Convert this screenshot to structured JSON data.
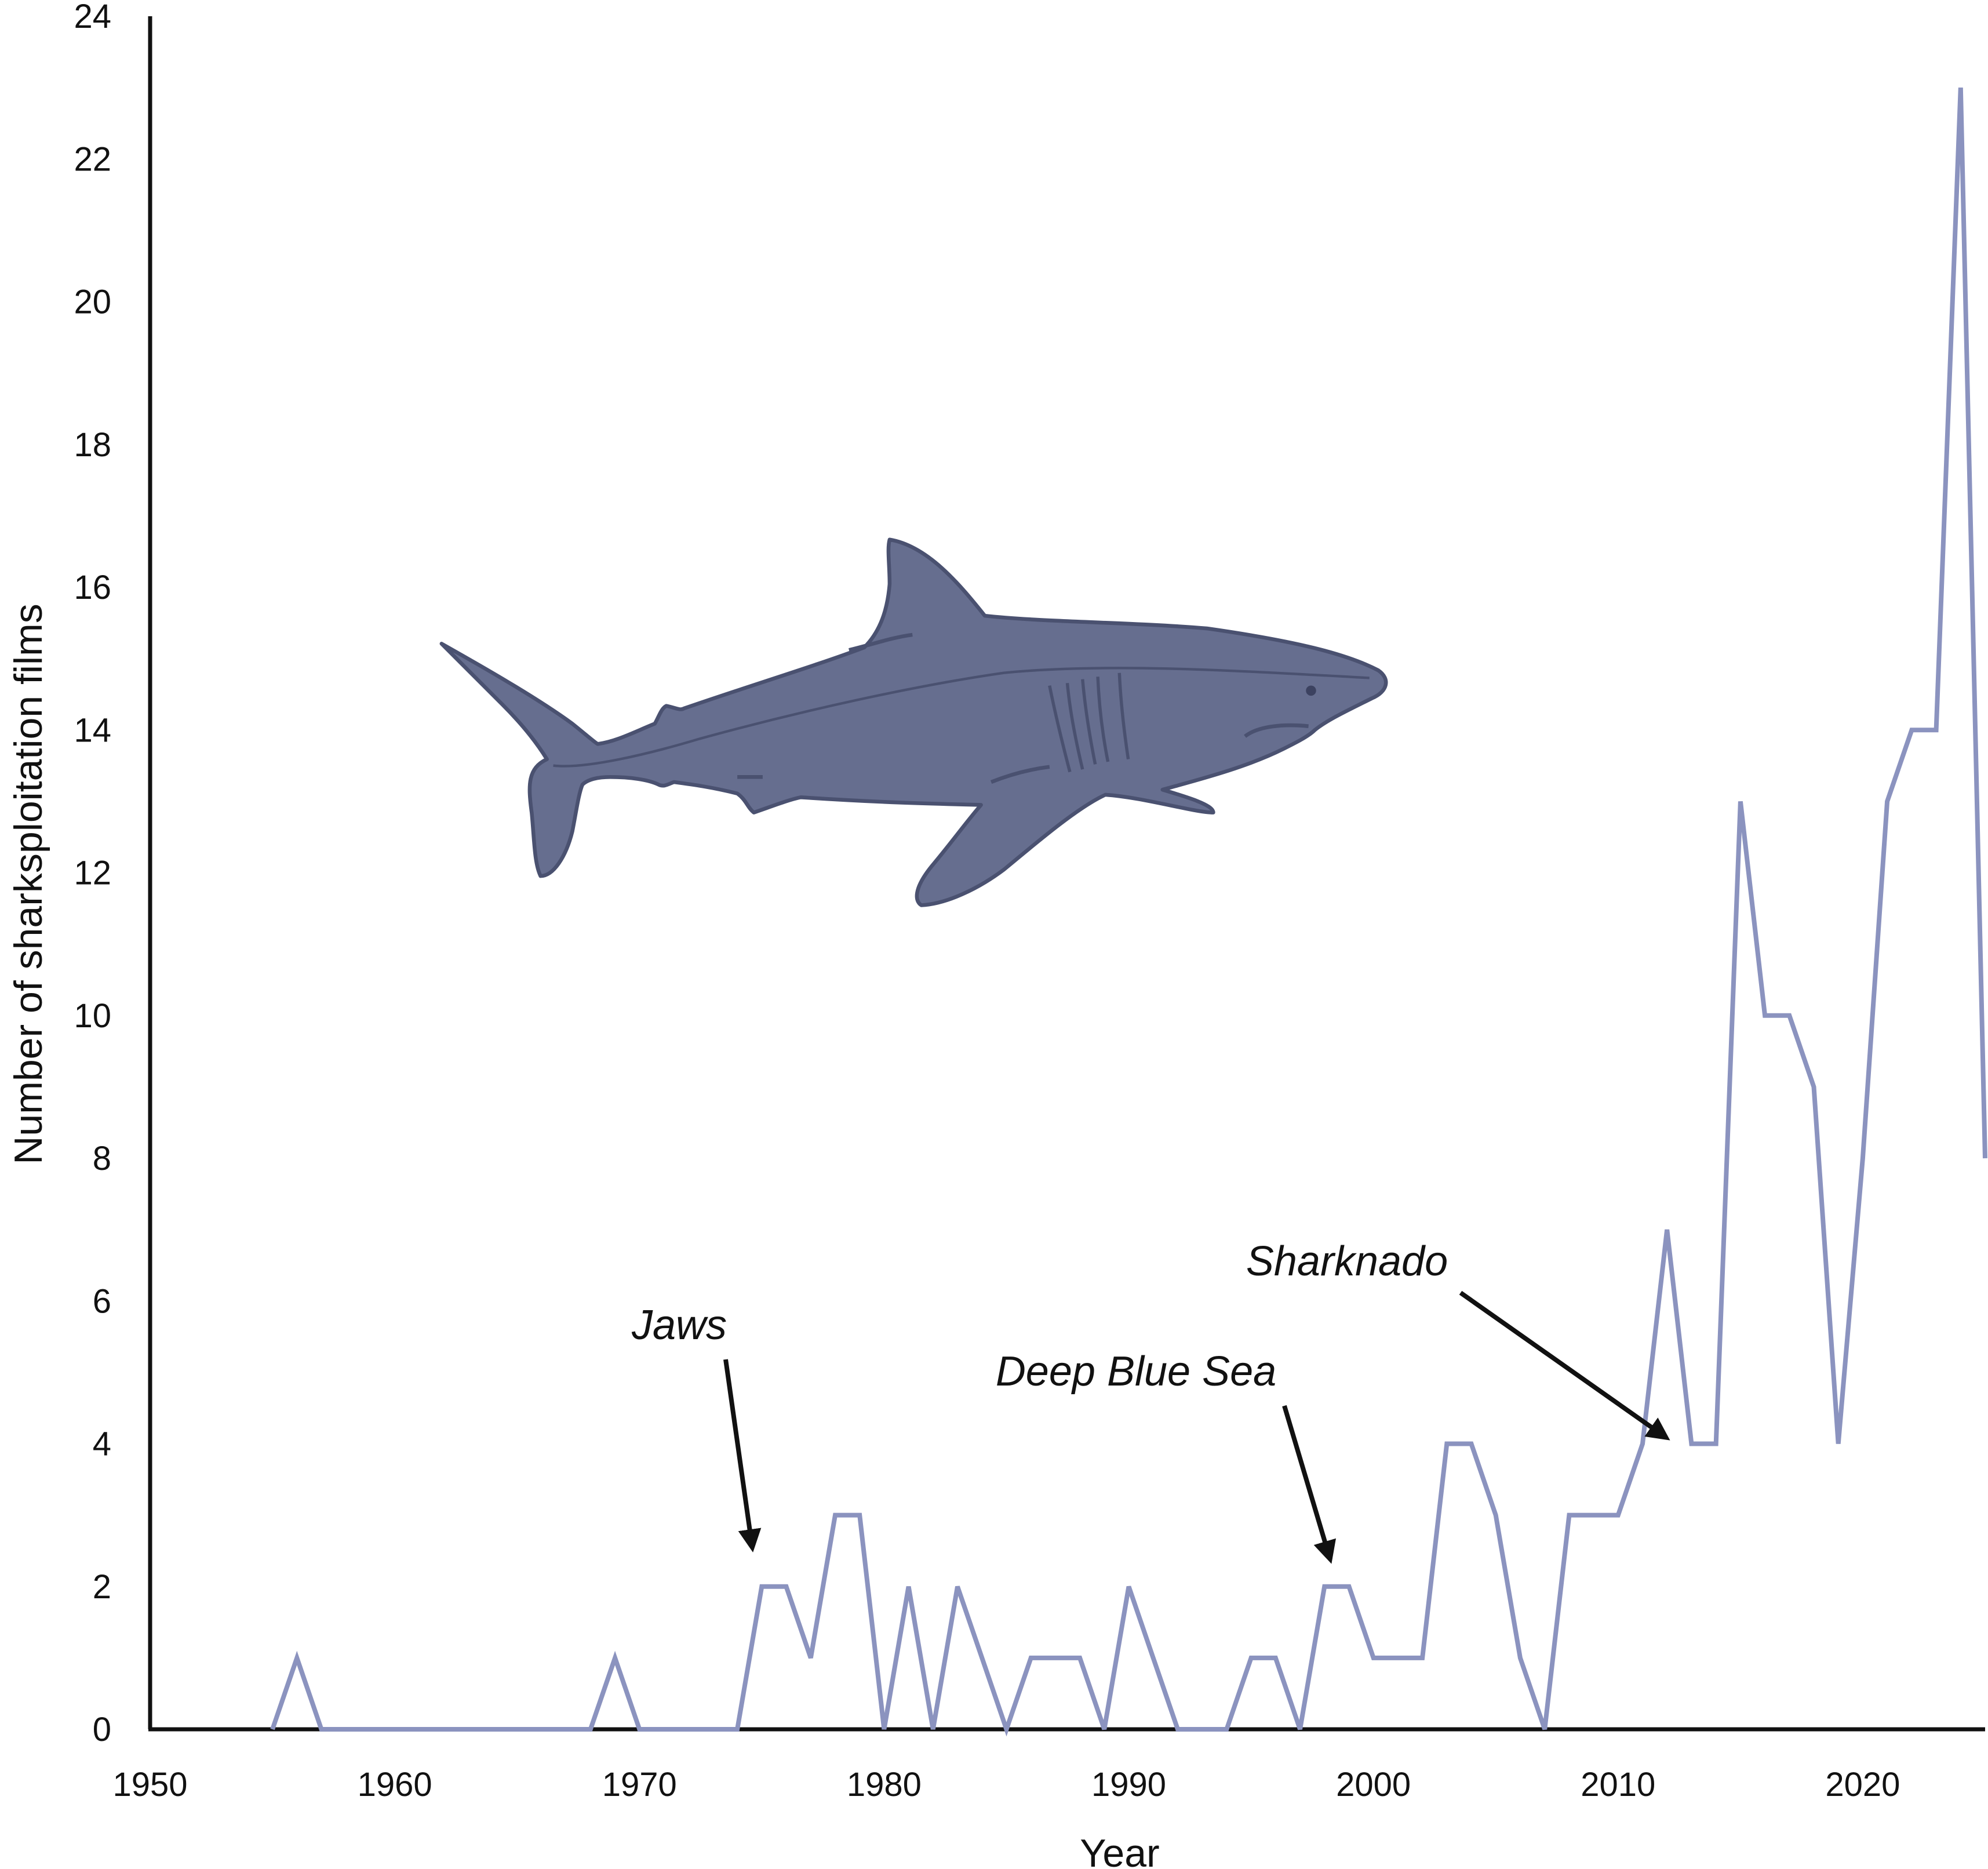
{
  "chart_data": {
    "type": "line",
    "title": "",
    "xlabel": "Year",
    "ylabel": "Number of sharksploitation films",
    "xlim": [
      1950,
      2025
    ],
    "ylim": [
      0,
      24
    ],
    "xticks": [
      "1950",
      "1960",
      "1970",
      "1980",
      "1990",
      "2000",
      "2010",
      "2020"
    ],
    "yticks": [
      "0",
      "2",
      "4",
      "6",
      "8",
      "10",
      "12",
      "14",
      "16",
      "18",
      "20",
      "22",
      "24"
    ],
    "grid": false,
    "line_color": "#8b93bf",
    "series": [
      {
        "x": [
          1955,
          1956,
          1957,
          1958,
          1959,
          1960,
          1961,
          1962,
          1963,
          1964,
          1965,
          1966,
          1967,
          1968,
          1969,
          1970,
          1971,
          1972,
          1973,
          1974,
          1975,
          1976,
          1977,
          1978,
          1979,
          1980,
          1981,
          1982,
          1983,
          1984,
          1985,
          1986,
          1987,
          1988,
          1989,
          1990,
          1991,
          1992,
          1993,
          1994,
          1995,
          1996,
          1997,
          1998,
          1999,
          2000,
          2001,
          2002,
          2003,
          2004,
          2005,
          2006,
          2007,
          2008,
          2009,
          2010,
          2011,
          2012,
          2013,
          2014,
          2015,
          2016,
          2017,
          2018,
          2019,
          2020,
          2021,
          2022,
          2023,
          2024,
          2025
        ],
        "values": [
          0,
          1,
          0,
          0,
          0,
          0,
          0,
          0,
          0,
          0,
          0,
          0,
          0,
          0,
          1,
          0,
          0,
          0,
          0,
          0,
          2,
          2,
          1,
          3,
          3,
          0,
          2,
          0,
          2,
          1,
          0,
          1,
          1,
          1,
          0,
          2,
          1,
          0,
          0,
          0,
          1,
          1,
          0,
          2,
          2,
          1,
          1,
          1,
          4,
          4,
          3,
          1,
          0,
          3,
          3,
          3,
          4,
          7,
          4,
          4,
          13,
          10,
          10,
          9,
          4,
          8,
          13,
          14,
          14,
          23,
          8
        ]
      }
    ],
    "annotations": [
      {
        "text": "Jaws",
        "x": 1975
      },
      {
        "text": "Deep Blue Sea",
        "x": 1999
      },
      {
        "text": "Sharknado",
        "x": 2013
      }
    ],
    "illustration": "shark-silhouette",
    "shark_color": "#666e8f"
  }
}
